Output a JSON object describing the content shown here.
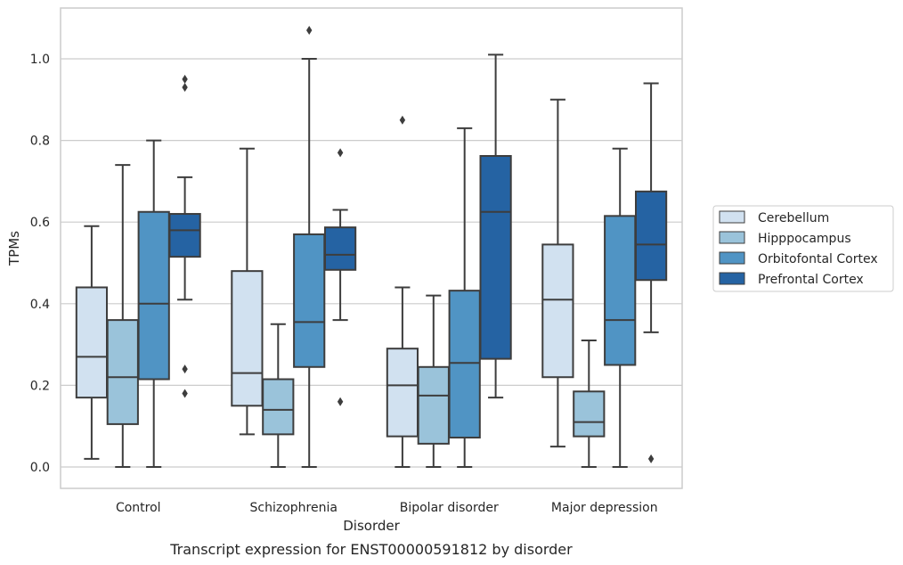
{
  "chart_data": {
    "type": "box",
    "title": "",
    "caption": "Transcript expression for ENST00000591812 by disorder",
    "xlabel": "Disorder",
    "ylabel": "TPMs",
    "ylim": [
      -0.05,
      1.13
    ],
    "yticks": [
      0.0,
      0.2,
      0.4,
      0.6,
      0.8,
      1.0
    ],
    "ytick_labels": [
      "0.0",
      "0.2",
      "0.4",
      "0.6",
      "0.8",
      "1.0"
    ],
    "grid": "horizontal",
    "legend_position": "right",
    "categories": [
      "Control",
      "Schizophrenia",
      "Bipolar disorder",
      "Major depression"
    ],
    "series": [
      {
        "name": "Cerebellum",
        "color": "#d1e1f0",
        "boxes": [
          {
            "whislo": 0.02,
            "q1": 0.17,
            "med": 0.27,
            "q3": 0.44,
            "whishi": 0.59,
            "fliers": []
          },
          {
            "whislo": 0.08,
            "q1": 0.15,
            "med": 0.23,
            "q3": 0.48,
            "whishi": 0.78,
            "fliers": []
          },
          {
            "whislo": 0.0,
            "q1": 0.075,
            "med": 0.2,
            "q3": 0.29,
            "whishi": 0.44,
            "fliers": [
              0.85
            ]
          },
          {
            "whislo": 0.05,
            "q1": 0.22,
            "med": 0.41,
            "q3": 0.545,
            "whishi": 0.9,
            "fliers": []
          }
        ]
      },
      {
        "name": "Hipppocampus",
        "color": "#9ac3da",
        "boxes": [
          {
            "whislo": 0.0,
            "q1": 0.105,
            "med": 0.22,
            "q3": 0.36,
            "whishi": 0.74,
            "fliers": []
          },
          {
            "whislo": 0.0,
            "q1": 0.08,
            "med": 0.14,
            "q3": 0.215,
            "whishi": 0.35,
            "fliers": []
          },
          {
            "whislo": 0.0,
            "q1": 0.057,
            "med": 0.175,
            "q3": 0.245,
            "whishi": 0.42,
            "fliers": []
          },
          {
            "whislo": 0.0,
            "q1": 0.075,
            "med": 0.11,
            "q3": 0.185,
            "whishi": 0.31,
            "fliers": []
          }
        ]
      },
      {
        "name": "Orbitofontal Cortex",
        "color": "#5094c4",
        "boxes": [
          {
            "whislo": 0.0,
            "q1": 0.215,
            "med": 0.4,
            "q3": 0.625,
            "whishi": 0.8,
            "fliers": []
          },
          {
            "whislo": 0.0,
            "q1": 0.245,
            "med": 0.355,
            "q3": 0.57,
            "whishi": 1.0,
            "fliers": [
              1.07
            ]
          },
          {
            "whislo": 0.0,
            "q1": 0.072,
            "med": 0.255,
            "q3": 0.432,
            "whishi": 0.83,
            "fliers": []
          },
          {
            "whislo": 0.0,
            "q1": 0.25,
            "med": 0.36,
            "q3": 0.615,
            "whishi": 0.78,
            "fliers": []
          }
        ]
      },
      {
        "name": "Prefrontal Cortex",
        "color": "#2563a3",
        "boxes": [
          {
            "whislo": 0.41,
            "q1": 0.515,
            "med": 0.58,
            "q3": 0.62,
            "whishi": 0.71,
            "fliers": [
              0.95,
              0.93,
              0.24,
              0.18
            ]
          },
          {
            "whislo": 0.36,
            "q1": 0.483,
            "med": 0.52,
            "q3": 0.587,
            "whishi": 0.63,
            "fliers": [
              0.77,
              0.16
            ]
          },
          {
            "whislo": 0.17,
            "q1": 0.265,
            "med": 0.625,
            "q3": 0.762,
            "whishi": 1.01,
            "fliers": []
          },
          {
            "whislo": 0.33,
            "q1": 0.458,
            "med": 0.545,
            "q3": 0.675,
            "whishi": 0.94,
            "fliers": [
              0.02
            ]
          }
        ]
      }
    ]
  }
}
